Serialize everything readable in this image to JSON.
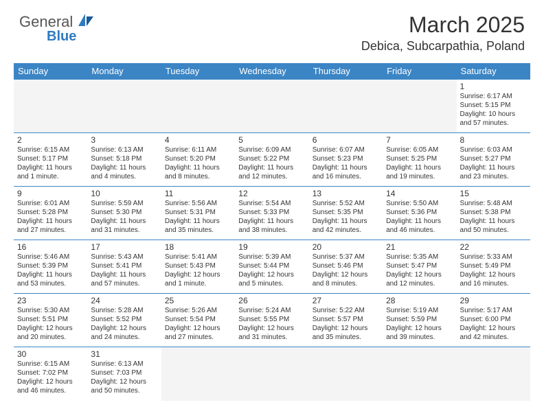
{
  "logo": {
    "general": "General",
    "blue": "Blue"
  },
  "title": "March 2025",
  "location": "Debica, Subcarpathia, Poland",
  "colors": {
    "header_bg": "#3b85c5",
    "header_fg": "#ffffff",
    "blank_bg": "#f4f4f4",
    "border": "#3b85c5",
    "text": "#333333",
    "logo_blue": "#2f7bc0"
  },
  "day_headers": [
    "Sunday",
    "Monday",
    "Tuesday",
    "Wednesday",
    "Thursday",
    "Friday",
    "Saturday"
  ],
  "weeks": [
    [
      null,
      null,
      null,
      null,
      null,
      null,
      {
        "n": "1",
        "sunrise": "6:17 AM",
        "sunset": "5:15 PM",
        "daylight": "10 hours and 57 minutes."
      }
    ],
    [
      {
        "n": "2",
        "sunrise": "6:15 AM",
        "sunset": "5:17 PM",
        "daylight": "11 hours and 1 minute."
      },
      {
        "n": "3",
        "sunrise": "6:13 AM",
        "sunset": "5:18 PM",
        "daylight": "11 hours and 4 minutes."
      },
      {
        "n": "4",
        "sunrise": "6:11 AM",
        "sunset": "5:20 PM",
        "daylight": "11 hours and 8 minutes."
      },
      {
        "n": "5",
        "sunrise": "6:09 AM",
        "sunset": "5:22 PM",
        "daylight": "11 hours and 12 minutes."
      },
      {
        "n": "6",
        "sunrise": "6:07 AM",
        "sunset": "5:23 PM",
        "daylight": "11 hours and 16 minutes."
      },
      {
        "n": "7",
        "sunrise": "6:05 AM",
        "sunset": "5:25 PM",
        "daylight": "11 hours and 19 minutes."
      },
      {
        "n": "8",
        "sunrise": "6:03 AM",
        "sunset": "5:27 PM",
        "daylight": "11 hours and 23 minutes."
      }
    ],
    [
      {
        "n": "9",
        "sunrise": "6:01 AM",
        "sunset": "5:28 PM",
        "daylight": "11 hours and 27 minutes."
      },
      {
        "n": "10",
        "sunrise": "5:59 AM",
        "sunset": "5:30 PM",
        "daylight": "11 hours and 31 minutes."
      },
      {
        "n": "11",
        "sunrise": "5:56 AM",
        "sunset": "5:31 PM",
        "daylight": "11 hours and 35 minutes."
      },
      {
        "n": "12",
        "sunrise": "5:54 AM",
        "sunset": "5:33 PM",
        "daylight": "11 hours and 38 minutes."
      },
      {
        "n": "13",
        "sunrise": "5:52 AM",
        "sunset": "5:35 PM",
        "daylight": "11 hours and 42 minutes."
      },
      {
        "n": "14",
        "sunrise": "5:50 AM",
        "sunset": "5:36 PM",
        "daylight": "11 hours and 46 minutes."
      },
      {
        "n": "15",
        "sunrise": "5:48 AM",
        "sunset": "5:38 PM",
        "daylight": "11 hours and 50 minutes."
      }
    ],
    [
      {
        "n": "16",
        "sunrise": "5:46 AM",
        "sunset": "5:39 PM",
        "daylight": "11 hours and 53 minutes."
      },
      {
        "n": "17",
        "sunrise": "5:43 AM",
        "sunset": "5:41 PM",
        "daylight": "11 hours and 57 minutes."
      },
      {
        "n": "18",
        "sunrise": "5:41 AM",
        "sunset": "5:43 PM",
        "daylight": "12 hours and 1 minute."
      },
      {
        "n": "19",
        "sunrise": "5:39 AM",
        "sunset": "5:44 PM",
        "daylight": "12 hours and 5 minutes."
      },
      {
        "n": "20",
        "sunrise": "5:37 AM",
        "sunset": "5:46 PM",
        "daylight": "12 hours and 8 minutes."
      },
      {
        "n": "21",
        "sunrise": "5:35 AM",
        "sunset": "5:47 PM",
        "daylight": "12 hours and 12 minutes."
      },
      {
        "n": "22",
        "sunrise": "5:33 AM",
        "sunset": "5:49 PM",
        "daylight": "12 hours and 16 minutes."
      }
    ],
    [
      {
        "n": "23",
        "sunrise": "5:30 AM",
        "sunset": "5:51 PM",
        "daylight": "12 hours and 20 minutes."
      },
      {
        "n": "24",
        "sunrise": "5:28 AM",
        "sunset": "5:52 PM",
        "daylight": "12 hours and 24 minutes."
      },
      {
        "n": "25",
        "sunrise": "5:26 AM",
        "sunset": "5:54 PM",
        "daylight": "12 hours and 27 minutes."
      },
      {
        "n": "26",
        "sunrise": "5:24 AM",
        "sunset": "5:55 PM",
        "daylight": "12 hours and 31 minutes."
      },
      {
        "n": "27",
        "sunrise": "5:22 AM",
        "sunset": "5:57 PM",
        "daylight": "12 hours and 35 minutes."
      },
      {
        "n": "28",
        "sunrise": "5:19 AM",
        "sunset": "5:59 PM",
        "daylight": "12 hours and 39 minutes."
      },
      {
        "n": "29",
        "sunrise": "5:17 AM",
        "sunset": "6:00 PM",
        "daylight": "12 hours and 42 minutes."
      }
    ],
    [
      {
        "n": "30",
        "sunrise": "6:15 AM",
        "sunset": "7:02 PM",
        "daylight": "12 hours and 46 minutes."
      },
      {
        "n": "31",
        "sunrise": "6:13 AM",
        "sunset": "7:03 PM",
        "daylight": "12 hours and 50 minutes."
      },
      null,
      null,
      null,
      null,
      null
    ]
  ],
  "labels": {
    "sunrise": "Sunrise:",
    "sunset": "Sunset:",
    "daylight": "Daylight:"
  }
}
